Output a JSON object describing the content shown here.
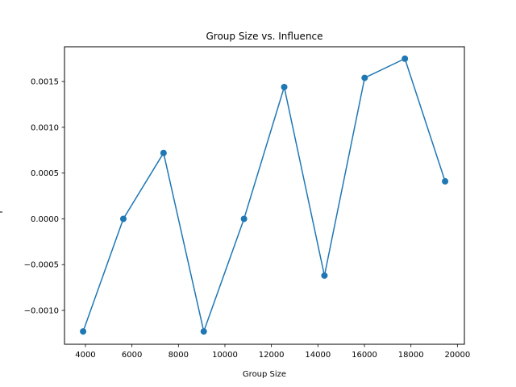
{
  "chart_data": {
    "type": "line",
    "title": "Group Size vs. Influence",
    "xlabel": "Group Size",
    "ylabel": "",
    "xlim": [
      3100,
      20300
    ],
    "ylim": [
      -0.00137,
      0.00188
    ],
    "xticks": [
      4000,
      6000,
      8000,
      10000,
      12000,
      14000,
      16000,
      18000,
      20000
    ],
    "xtick_labels": [
      "4000",
      "6000",
      "8000",
      "10000",
      "12000",
      "14000",
      "16000",
      "18000",
      "20000"
    ],
    "yticks": [
      -0.001,
      -0.0005,
      0.0,
      0.0005,
      0.001,
      0.0015
    ],
    "ytick_labels": [
      "−0.0010",
      "−0.0005",
      "0.0000",
      "0.0005",
      "0.0010",
      "0.0015"
    ],
    "grid": false,
    "series": [
      {
        "color": "#1f77b4",
        "marker": "circle",
        "x": [
          3900,
          5630,
          7360,
          9090,
          10820,
          12550,
          14280,
          16010,
          17740,
          19470
        ],
        "y": [
          -0.00123,
          0.0,
          0.00072,
          -0.00123,
          0.0,
          0.00144,
          -0.00062,
          0.00154,
          0.00175,
          0.00041
        ]
      }
    ]
  }
}
